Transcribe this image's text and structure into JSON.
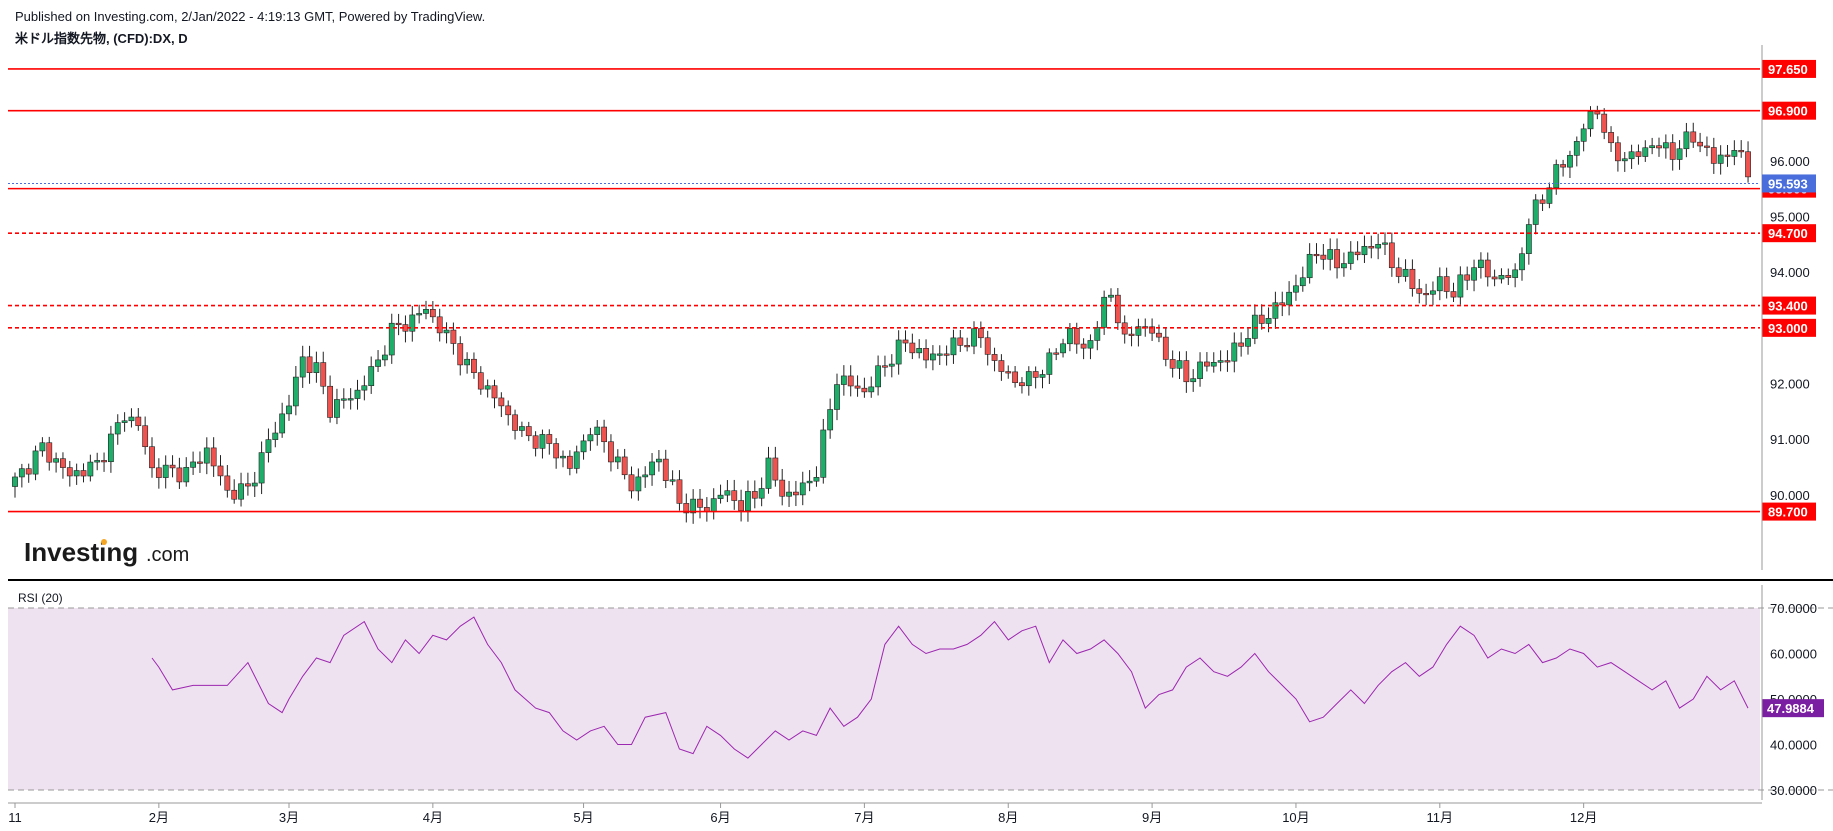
{
  "header": {
    "published": "Published on Investing.com, 2/Jan/2022 - 4:19:13 GMT, Powered by TradingView.",
    "symbol": "米ドル指数先物, (CFD):DX, D"
  },
  "watermark": {
    "brand": "Investing",
    "suffix": ".com"
  },
  "colors": {
    "up": "#26a69a",
    "upBody": "#1fae6a",
    "down": "#ef5350",
    "level": "#ff0000",
    "current": "#4a6fdd",
    "rsi": "#9c27b0",
    "rsiBand": "#efe2f0"
  },
  "chart_data": [
    {
      "type": "candlestick",
      "title": "米ドル指数先物, (CFD):DX, D",
      "price_axis": {
        "min": 89.1,
        "max": 97.9,
        "ticks": [
          "90.000",
          "91.000",
          "92.000",
          "93.000",
          "94.000",
          "95.000",
          "96.000"
        ]
      },
      "x_axis": {
        "labels": [
          "11",
          "2月",
          "3月",
          "4月",
          "5月",
          "6月",
          "7月",
          "8月",
          "9月",
          "10月",
          "11月",
          "12月"
        ],
        "label_positions_days": [
          0,
          21,
          40,
          61,
          83,
          103,
          124,
          145,
          166,
          187,
          208,
          229
        ]
      },
      "horizontal_levels": [
        {
          "value": 97.65,
          "label": "97.650",
          "style": "solid"
        },
        {
          "value": 96.9,
          "label": "96.900",
          "style": "solid"
        },
        {
          "value": 95.5,
          "label": "95.500",
          "style": "solid"
        },
        {
          "value": 94.7,
          "label": "94.700",
          "style": "dashed"
        },
        {
          "value": 93.4,
          "label": "93.400",
          "style": "dashed"
        },
        {
          "value": 93.0,
          "label": "93.000",
          "style": "dashed"
        },
        {
          "value": 89.7,
          "label": "89.700",
          "style": "solid"
        }
      ],
      "current_price": {
        "value": 95.593,
        "label": "95.593"
      },
      "close_path": [
        [
          0,
          90.25
        ],
        [
          4,
          90.85
        ],
        [
          8,
          90.35
        ],
        [
          12,
          90.55
        ],
        [
          16,
          91.45
        ],
        [
          18,
          91.25
        ],
        [
          20,
          90.45
        ],
        [
          25,
          90.4
        ],
        [
          28,
          90.8
        ],
        [
          31,
          90.05
        ],
        [
          34,
          90.1
        ],
        [
          37,
          90.95
        ],
        [
          40,
          91.65
        ],
        [
          42,
          92.45
        ],
        [
          44,
          92.25
        ],
        [
          46,
          91.55
        ],
        [
          50,
          91.85
        ],
        [
          53,
          92.4
        ],
        [
          55,
          92.95
        ],
        [
          58,
          93.15
        ],
        [
          60,
          93.35
        ],
        [
          62,
          93.0
        ],
        [
          64,
          92.7
        ],
        [
          66,
          92.3
        ],
        [
          70,
          91.75
        ],
        [
          74,
          91.1
        ],
        [
          78,
          90.9
        ],
        [
          81,
          90.5
        ],
        [
          84,
          91.2
        ],
        [
          86,
          90.95
        ],
        [
          90,
          90.15
        ],
        [
          94,
          90.65
        ],
        [
          97,
          89.85
        ],
        [
          101,
          89.75
        ],
        [
          103,
          90.05
        ],
        [
          106,
          89.85
        ],
        [
          108,
          89.95
        ],
        [
          110,
          90.55
        ],
        [
          112,
          90.0
        ],
        [
          115,
          90.1
        ],
        [
          117,
          90.45
        ],
        [
          120,
          92.1
        ],
        [
          124,
          91.85
        ],
        [
          127,
          92.35
        ],
        [
          130,
          92.75
        ],
        [
          133,
          92.45
        ],
        [
          136,
          92.6
        ],
        [
          139,
          92.8
        ],
        [
          141,
          92.85
        ],
        [
          143,
          92.35
        ],
        [
          146,
          92.05
        ],
        [
          148,
          92.05
        ],
        [
          151,
          92.4
        ],
        [
          154,
          92.95
        ],
        [
          156,
          92.55
        ],
        [
          158,
          93.1
        ],
        [
          160,
          93.65
        ],
        [
          162,
          92.75
        ],
        [
          164,
          93.05
        ],
        [
          166,
          92.95
        ],
        [
          168,
          92.5
        ],
        [
          171,
          92.1
        ],
        [
          174,
          92.35
        ],
        [
          177,
          92.45
        ],
        [
          181,
          93.05
        ],
        [
          185,
          93.45
        ],
        [
          188,
          93.95
        ],
        [
          190,
          94.4
        ],
        [
          193,
          94.15
        ],
        [
          196,
          94.35
        ],
        [
          199,
          94.55
        ],
        [
          202,
          94.0
        ],
        [
          206,
          93.55
        ],
        [
          208,
          93.85
        ],
        [
          210,
          93.6
        ],
        [
          213,
          94.15
        ],
        [
          216,
          93.9
        ],
        [
          219,
          93.95
        ],
        [
          221,
          94.9
        ],
        [
          223,
          95.35
        ],
        [
          225,
          95.8
        ],
        [
          227,
          96.1
        ],
        [
          229,
          96.6
        ],
        [
          231,
          96.95
        ],
        [
          233,
          96.15
        ],
        [
          236,
          96.05
        ],
        [
          239,
          96.3
        ],
        [
          242,
          96.15
        ],
        [
          245,
          96.45
        ],
        [
          248,
          96.0
        ],
        [
          251,
          96.2
        ],
        [
          253,
          95.85
        ]
      ]
    },
    {
      "type": "line",
      "label": "RSI (20)",
      "y_axis": {
        "min": 30,
        "max": 70,
        "ticks": [
          "30.0000",
          "40.0000",
          "50.0000",
          "60.0000",
          "70.0000"
        ]
      },
      "bands": [
        30,
        70
      ],
      "current": {
        "value": 47.9884,
        "label": "47.9884"
      },
      "points": [
        [
          20,
          59
        ],
        [
          21,
          57
        ],
        [
          23,
          52
        ],
        [
          26,
          53
        ],
        [
          28,
          53
        ],
        [
          31,
          53
        ],
        [
          34,
          58
        ],
        [
          37,
          49
        ],
        [
          39,
          47
        ],
        [
          40,
          50
        ],
        [
          42,
          55
        ],
        [
          44,
          59
        ],
        [
          46,
          58
        ],
        [
          48,
          64
        ],
        [
          51,
          67
        ],
        [
          53,
          61
        ],
        [
          55,
          58
        ],
        [
          57,
          63
        ],
        [
          59,
          60
        ],
        [
          61,
          64
        ],
        [
          63,
          63
        ],
        [
          65,
          66
        ],
        [
          67,
          68
        ],
        [
          69,
          62
        ],
        [
          71,
          58
        ],
        [
          73,
          52
        ],
        [
          76,
          48
        ],
        [
          78,
          47
        ],
        [
          80,
          43
        ],
        [
          82,
          41
        ],
        [
          84,
          43
        ],
        [
          86,
          44
        ],
        [
          88,
          40
        ],
        [
          90,
          40
        ],
        [
          92,
          46
        ],
        [
          95,
          47
        ],
        [
          97,
          39
        ],
        [
          99,
          38
        ],
        [
          101,
          44
        ],
        [
          103,
          42
        ],
        [
          105,
          39
        ],
        [
          107,
          37
        ],
        [
          109,
          40
        ],
        [
          111,
          43
        ],
        [
          113,
          41
        ],
        [
          115,
          43
        ],
        [
          117,
          42
        ],
        [
          119,
          48
        ],
        [
          121,
          44
        ],
        [
          123,
          46
        ],
        [
          125,
          50
        ],
        [
          127,
          62
        ],
        [
          129,
          66
        ],
        [
          131,
          62
        ],
        [
          133,
          60
        ],
        [
          135,
          61
        ],
        [
          137,
          61
        ],
        [
          139,
          62
        ],
        [
          141,
          64
        ],
        [
          143,
          67
        ],
        [
          145,
          63
        ],
        [
          147,
          65
        ],
        [
          149,
          66
        ],
        [
          151,
          58
        ],
        [
          153,
          63
        ],
        [
          155,
          60
        ],
        [
          157,
          61
        ],
        [
          159,
          63
        ],
        [
          161,
          60
        ],
        [
          163,
          56
        ],
        [
          165,
          48
        ],
        [
          167,
          51
        ],
        [
          169,
          52
        ],
        [
          171,
          57
        ],
        [
          173,
          59
        ],
        [
          175,
          56
        ],
        [
          177,
          55
        ],
        [
          179,
          57
        ],
        [
          181,
          60
        ],
        [
          183,
          56
        ],
        [
          185,
          53
        ],
        [
          187,
          50
        ],
        [
          189,
          45
        ],
        [
          191,
          46
        ],
        [
          193,
          49
        ],
        [
          195,
          52
        ],
        [
          197,
          49
        ],
        [
          199,
          53
        ],
        [
          201,
          56
        ],
        [
          203,
          58
        ],
        [
          205,
          55
        ],
        [
          207,
          57
        ],
        [
          209,
          62
        ],
        [
          211,
          66
        ],
        [
          213,
          64
        ],
        [
          215,
          59
        ],
        [
          217,
          61
        ],
        [
          219,
          60
        ],
        [
          221,
          62
        ],
        [
          223,
          58
        ],
        [
          225,
          59
        ],
        [
          227,
          61
        ],
        [
          229,
          60
        ],
        [
          231,
          57
        ],
        [
          233,
          58
        ],
        [
          235,
          56
        ],
        [
          237,
          54
        ],
        [
          239,
          52
        ],
        [
          241,
          54
        ],
        [
          243,
          48
        ],
        [
          245,
          50
        ],
        [
          247,
          55
        ],
        [
          249,
          52
        ],
        [
          251,
          54
        ],
        [
          253,
          47.99
        ]
      ]
    }
  ]
}
